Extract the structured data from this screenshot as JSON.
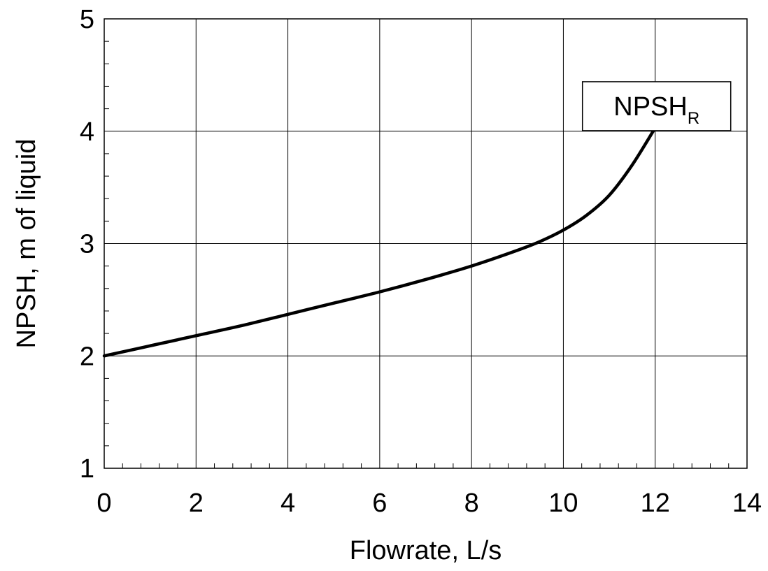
{
  "chart_data": {
    "type": "line",
    "title": "",
    "xlabel": "Flowrate, L/s",
    "ylabel": "NPSH, m of liquid",
    "xlim": [
      0,
      14
    ],
    "ylim": [
      1,
      5
    ],
    "x_ticks": [
      0,
      2,
      4,
      6,
      8,
      10,
      12,
      14
    ],
    "y_ticks": [
      1,
      2,
      3,
      4,
      5
    ],
    "x_tick_labels": [
      "0",
      "2",
      "4",
      "6",
      "8",
      "10",
      "12",
      "14"
    ],
    "y_tick_labels": [
      "1",
      "2",
      "3",
      "4",
      "5"
    ],
    "x_minor_step": 0.4,
    "y_minor_step": 0.2,
    "grid": true,
    "series": [
      {
        "label_main": "NPSH",
        "label_sub": "R",
        "color": "#000000",
        "x": [
          0,
          1,
          2,
          3,
          4,
          5,
          6,
          7,
          8,
          9,
          9.5,
          10,
          10.5,
          11,
          11.5,
          12
        ],
        "y": [
          2.0,
          2.09,
          2.18,
          2.27,
          2.37,
          2.47,
          2.57,
          2.68,
          2.8,
          2.94,
          3.02,
          3.12,
          3.25,
          3.43,
          3.7,
          4.03
        ]
      }
    ]
  }
}
